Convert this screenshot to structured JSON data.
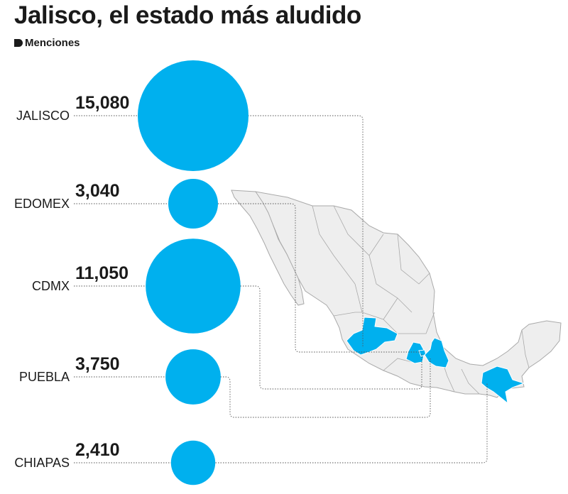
{
  "header": {
    "title": "Jalisco, el estado más aludido",
    "subtitle": "Menciones"
  },
  "colors": {
    "bubble": "#00b0ee",
    "map_fill": "#eeeeee",
    "map_stroke": "#a9a9a9",
    "text": "#1a1a1a"
  },
  "chart_data": {
    "type": "bubble",
    "title": "Jalisco, el estado más aludido",
    "subtitle": "Menciones",
    "categories": [
      "JALISCO",
      "EDOMEX",
      "CDMX",
      "PUEBLA",
      "CHIAPAS"
    ],
    "value_labels": [
      "15,080",
      "3,040",
      "11,050",
      "3,750",
      "2,410"
    ],
    "values": [
      15080,
      3040,
      11050,
      3750,
      2410
    ],
    "highlighted_states_on_map": [
      "Jalisco",
      "Estado de México",
      "Ciudad de México",
      "Puebla",
      "Chiapas"
    ]
  }
}
